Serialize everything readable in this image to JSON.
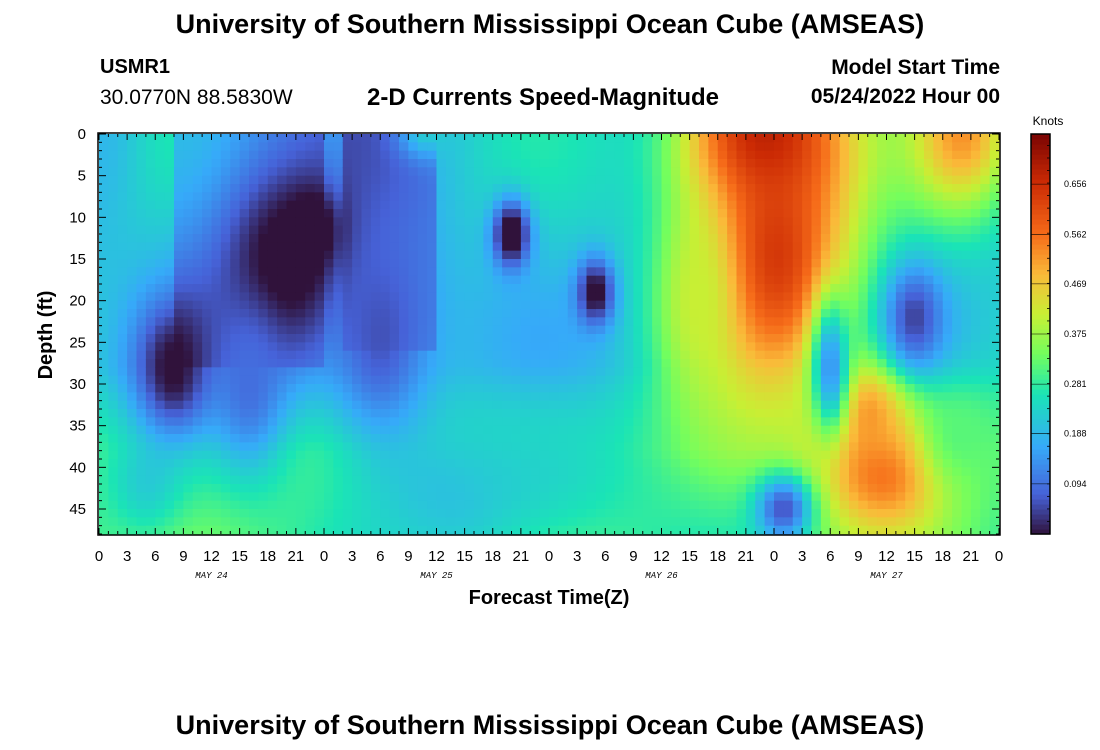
{
  "header": {
    "title": "University of Southern Mississippi Ocean Cube (AMSEAS)",
    "station": "USMR1",
    "coordinates": "30.0770N  88.5830W",
    "subtitle": "2-D Currents Speed-Magnitude",
    "model_start_label": "Model Start Time",
    "model_start_value": "05/24/2022 Hour 00"
  },
  "footer": {
    "title": "University of Southern Mississippi Ocean Cube (AMSEAS)"
  },
  "chart_data": {
    "type": "heatmap",
    "title": "2-D Currents Speed-Magnitude",
    "xlabel": "Forecast Time(Z)",
    "ylabel": "Depth (ft)",
    "x_range_hours": [
      0,
      96
    ],
    "y_range_ft": [
      0,
      48
    ],
    "x_ticks": [
      {
        "h": 0,
        "label": "0"
      },
      {
        "h": 3,
        "label": "3"
      },
      {
        "h": 6,
        "label": "6"
      },
      {
        "h": 9,
        "label": "9"
      },
      {
        "h": 12,
        "label": "12"
      },
      {
        "h": 15,
        "label": "15"
      },
      {
        "h": 18,
        "label": "18"
      },
      {
        "h": 21,
        "label": "21"
      },
      {
        "h": 24,
        "label": "0"
      },
      {
        "h": 27,
        "label": "3"
      },
      {
        "h": 30,
        "label": "6"
      },
      {
        "h": 33,
        "label": "9"
      },
      {
        "h": 36,
        "label": "12"
      },
      {
        "h": 39,
        "label": "15"
      },
      {
        "h": 42,
        "label": "18"
      },
      {
        "h": 45,
        "label": "21"
      },
      {
        "h": 48,
        "label": "0"
      },
      {
        "h": 51,
        "label": "3"
      },
      {
        "h": 54,
        "label": "6"
      },
      {
        "h": 57,
        "label": "9"
      },
      {
        "h": 60,
        "label": "12"
      },
      {
        "h": 63,
        "label": "15"
      },
      {
        "h": 66,
        "label": "18"
      },
      {
        "h": 69,
        "label": "21"
      },
      {
        "h": 72,
        "label": "0"
      },
      {
        "h": 75,
        "label": "3"
      },
      {
        "h": 78,
        "label": "6"
      },
      {
        "h": 81,
        "label": "9"
      },
      {
        "h": 84,
        "label": "12"
      },
      {
        "h": 87,
        "label": "15"
      },
      {
        "h": 90,
        "label": "18"
      },
      {
        "h": 93,
        "label": "21"
      },
      {
        "h": 96,
        "label": "0"
      }
    ],
    "day_labels": [
      {
        "h": 12,
        "label": "MAY 24"
      },
      {
        "h": 36,
        "label": "MAY 25"
      },
      {
        "h": 60,
        "label": "MAY 26"
      },
      {
        "h": 84,
        "label": "MAY 27"
      }
    ],
    "y_ticks": [
      0,
      5,
      10,
      15,
      20,
      25,
      30,
      35,
      40,
      45
    ],
    "colorbar": {
      "label": "Knots",
      "min": 0.0,
      "max": 0.75,
      "ticks": [
        0.094,
        0.188,
        0.281,
        0.375,
        0.469,
        0.562,
        0.656
      ]
    },
    "features": [
      {
        "h": 0,
        "d": 0,
        "w": 4,
        "dd": 14,
        "v": 0.25
      },
      {
        "h": 5,
        "d": 42,
        "w": 4,
        "dd": 6,
        "v": 0.3
      },
      {
        "h": 23,
        "d": 12,
        "w": 3,
        "dd": 5,
        "v": -0.1
      },
      {
        "h": 20,
        "d": 16,
        "w": 7,
        "dd": 12,
        "v": -0.05
      },
      {
        "h": 8,
        "d": 28,
        "w": 4,
        "dd": 8,
        "v": -0.02
      },
      {
        "h": 35,
        "d": 0,
        "w": 3,
        "dd": 3,
        "v": 0.3
      },
      {
        "h": 44,
        "d": 12,
        "w": 2,
        "dd": 4,
        "v": -0.08
      },
      {
        "h": 53,
        "d": 19,
        "w": 2,
        "dd": 4,
        "v": -0.05
      },
      {
        "h": 47,
        "d": 40,
        "w": 12,
        "dd": 10,
        "v": 0.32
      },
      {
        "h": 38,
        "d": 44,
        "w": 8,
        "dd": 8,
        "v": 0.28
      },
      {
        "h": 72,
        "d": 15,
        "w": 9,
        "dd": 18,
        "v": 0.85
      },
      {
        "h": 71,
        "d": 0,
        "w": 9,
        "dd": 10,
        "v": 0.9
      },
      {
        "h": 64,
        "d": 20,
        "w": 4,
        "dd": 12,
        "v": 0.55
      },
      {
        "h": 84,
        "d": 40,
        "w": 7,
        "dd": 8,
        "v": 0.78
      },
      {
        "h": 82,
        "d": 34,
        "w": 5,
        "dd": 7,
        "v": 0.7
      },
      {
        "h": 92,
        "d": 36,
        "w": 5,
        "dd": 7,
        "v": 0.42
      },
      {
        "h": 92,
        "d": 0,
        "w": 6,
        "dd": 10,
        "v": 0.7
      },
      {
        "h": 87,
        "d": 22,
        "w": 3,
        "dd": 6,
        "v": 0.06
      },
      {
        "h": 78,
        "d": 28,
        "w": 2,
        "dd": 8,
        "v": 0.18
      },
      {
        "h": 73,
        "d": 45,
        "w": 3,
        "dd": 4,
        "v": 0.08
      },
      {
        "h": 30,
        "d": 24,
        "w": 6,
        "dd": 14,
        "v": 0.08
      },
      {
        "h": 16,
        "d": 30,
        "w": 4,
        "dd": 10,
        "v": 0.12
      }
    ]
  }
}
